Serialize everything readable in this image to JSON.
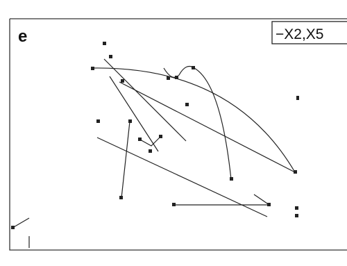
{
  "panel": {
    "label": "e",
    "legend": "−X2,X5"
  }
}
